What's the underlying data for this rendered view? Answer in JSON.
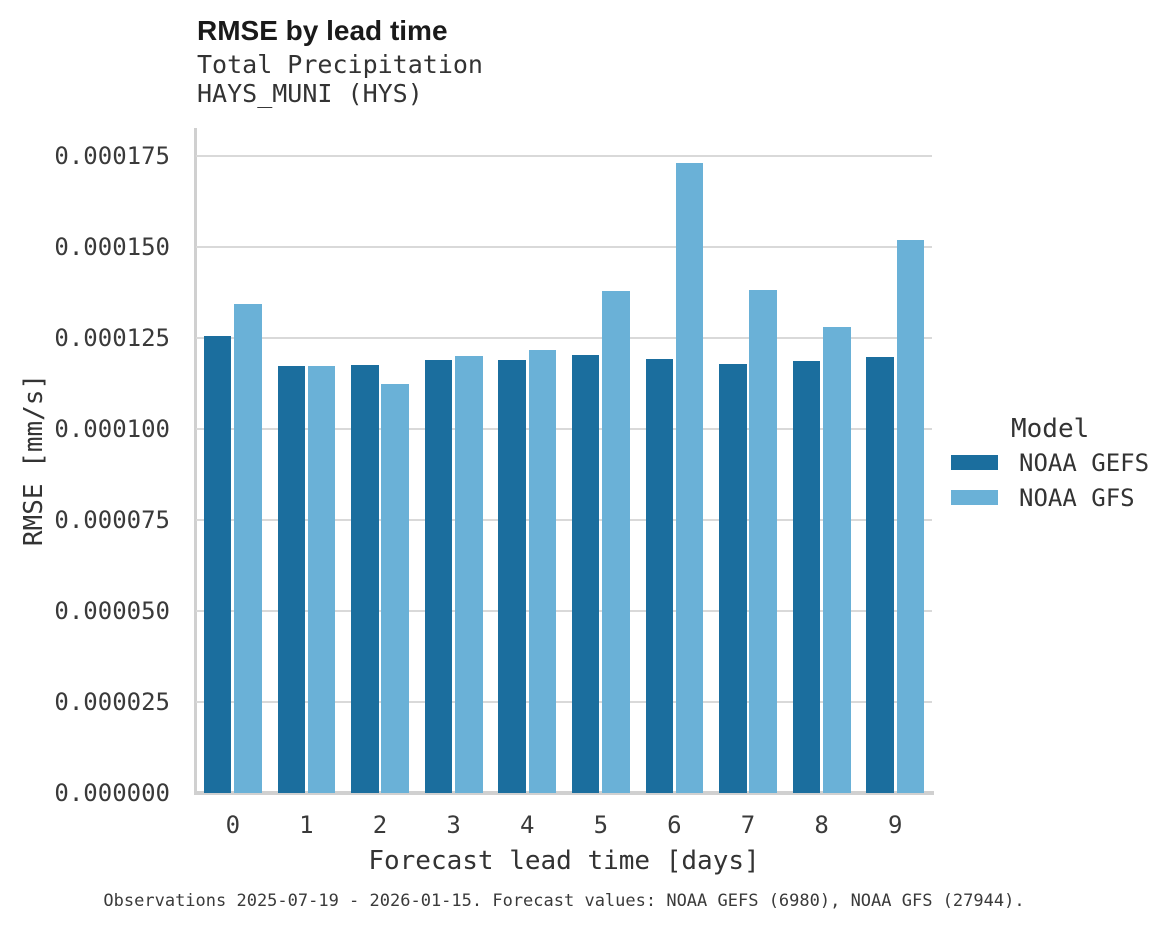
{
  "chart": {
    "title": "RMSE by lead time",
    "subtitle": "Total Precipitation",
    "station": "HAYS_MUNI (HYS)",
    "xlabel": "Forecast lead time [days]",
    "ylabel": "RMSE [mm/s]",
    "caption": "Observations 2025-07-19 - 2026-01-15. Forecast values: NOAA GEFS (6980), NOAA GFS (27944)."
  },
  "legend": {
    "title": "Model",
    "entries": [
      {
        "label": "NOAA GEFS",
        "color": "#1b6e9e"
      },
      {
        "label": "NOAA GFS",
        "color": "#6ab1d7"
      }
    ]
  },
  "colors": {
    "gefs_dark_blue": "#1b6e9e",
    "gfs_light_blue": "#6ab1d7",
    "gridline_gray": "#d9d9d9",
    "axis_gray": "#d0d0d0"
  },
  "chart_data": {
    "type": "bar",
    "title": "RMSE by lead time",
    "subtitle": "Total Precipitation",
    "station": "HAYS_MUNI (HYS)",
    "xlabel": "Forecast lead time [days]",
    "ylabel": "RMSE [mm/s]",
    "categories": [
      "0",
      "1",
      "2",
      "3",
      "4",
      "5",
      "6",
      "7",
      "8",
      "9"
    ],
    "series": [
      {
        "name": "NOAA GEFS",
        "color": "#1b6e9e",
        "values": [
          0.0001255,
          0.0001173,
          0.0001175,
          0.0001189,
          0.0001189,
          0.0001203,
          0.0001192,
          0.0001177,
          0.0001187,
          0.0001197
        ]
      },
      {
        "name": "NOAA GFS",
        "color": "#6ab1d7",
        "values": [
          0.0001343,
          0.0001173,
          0.0001122,
          0.00012,
          0.0001216,
          0.0001378,
          0.000173,
          0.0001381,
          0.000128,
          0.0001519
        ]
      }
    ],
    "ylim": [
      0,
      0.000175
    ],
    "yticks": [
      0.0,
      2.5e-05,
      5e-05,
      7.5e-05,
      0.0001,
      0.000125,
      0.00015,
      0.000175
    ],
    "ytick_labels": [
      "0.000000",
      "0.000025",
      "0.000050",
      "0.000075",
      "0.000100",
      "0.000125",
      "0.000150",
      "0.000175"
    ],
    "grid": true,
    "legend_title": "Model",
    "legend_position": "right",
    "caption": "Observations 2025-07-19 - 2026-01-15. Forecast values: NOAA GEFS (6980), NOAA GFS (27944)."
  }
}
